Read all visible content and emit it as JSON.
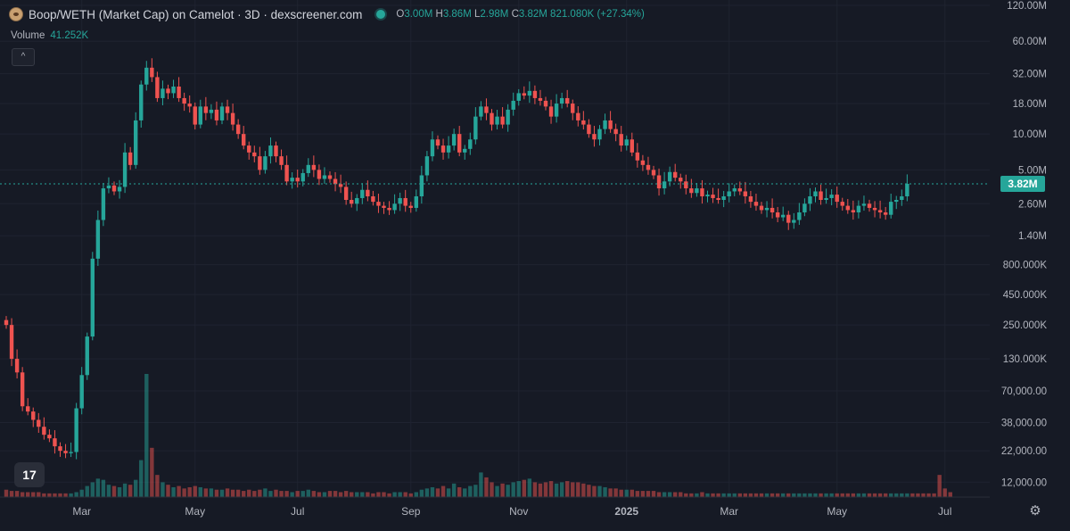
{
  "header": {
    "title": "Boop/WETH (Market Cap) on Camelot · 3D · dexscreener.com",
    "ohlc": {
      "o_key": "O",
      "o_val": "3.00M",
      "h_key": "H",
      "h_val": "3.86M",
      "l_key": "L",
      "l_val": "2.98M",
      "c_key": "C",
      "c_val": "3.82M",
      "change": "821.080K (+27.34%)"
    },
    "volume_label": "Volume",
    "volume_value": "41.252K",
    "collapse_label": "^"
  },
  "tv_logo": "17",
  "current_price_label": "3.82M",
  "colors": {
    "up": "#26a69a",
    "down": "#ef5350",
    "background": "#161a25",
    "text": "#b2b5be"
  },
  "icons": {
    "settings": "gear-icon",
    "collapse": "chevron-up-icon",
    "logo": "tradingview-logo"
  },
  "chart_data": {
    "type": "candlestick",
    "scale": "log",
    "ylim": [
      9000,
      120000000
    ],
    "y_ticks": [
      {
        "v": 120000000,
        "label": "120.00M"
      },
      {
        "v": 60000000,
        "label": "60.00M"
      },
      {
        "v": 32000000,
        "label": "32.00M"
      },
      {
        "v": 18000000,
        "label": "18.00M"
      },
      {
        "v": 10000000,
        "label": "10.00M"
      },
      {
        "v": 5000000,
        "label": "5.00M"
      },
      {
        "v": 2600000,
        "label": "2.60M"
      },
      {
        "v": 1400000,
        "label": "1.40M"
      },
      {
        "v": 800000,
        "label": "800.000K"
      },
      {
        "v": 450000,
        "label": "450.000K"
      },
      {
        "v": 250000,
        "label": "250.000K"
      },
      {
        "v": 130000,
        "label": "130.000K"
      },
      {
        "v": 70000,
        "label": "70,000.00"
      },
      {
        "v": 38000,
        "label": "38,000.00"
      },
      {
        "v": 22000,
        "label": "22,000.00"
      },
      {
        "v": 12000,
        "label": "12,000.00"
      }
    ],
    "x_ticks": [
      {
        "i": 14,
        "label": "Mar"
      },
      {
        "i": 35,
        "label": "May"
      },
      {
        "i": 54,
        "label": "Jul"
      },
      {
        "i": 75,
        "label": "Sep"
      },
      {
        "i": 95,
        "label": "Nov"
      },
      {
        "i": 115,
        "label": "2025"
      },
      {
        "i": 134,
        "label": "Mar"
      },
      {
        "i": 154,
        "label": "May"
      },
      {
        "i": 174,
        "label": "Jul"
      }
    ],
    "current_price": 3820000,
    "closes": [
      250000,
      130000,
      100000,
      52000,
      47000,
      40000,
      35000,
      30000,
      28000,
      24000,
      22000,
      21000,
      21500,
      50000,
      95000,
      200000,
      900000,
      1900000,
      3500000,
      3700000,
      3300000,
      3600000,
      7000000,
      5500000,
      13000000,
      26000000,
      36000000,
      30000000,
      20000000,
      24000000,
      22000000,
      25000000,
      20000000,
      18000000,
      17000000,
      12000000,
      17000000,
      15000000,
      16000000,
      13000000,
      17000000,
      15000000,
      12000000,
      10000000,
      8000000,
      7000000,
      6500000,
      5000000,
      6500000,
      8000000,
      6500000,
      5500000,
      4000000,
      4300000,
      4000000,
      4700000,
      5500000,
      5000000,
      4200000,
      4500000,
      4200000,
      3800000,
      3600000,
      2800000,
      2600000,
      2900000,
      3400000,
      3000000,
      2700000,
      2500000,
      2400000,
      2300000,
      2600000,
      2900000,
      2500000,
      2400000,
      3000000,
      4500000,
      6500000,
      9000000,
      8000000,
      7000000,
      8000000,
      10000000,
      7000000,
      7500000,
      9000000,
      14000000,
      17000000,
      15000000,
      12000000,
      14000000,
      12000000,
      16000000,
      19000000,
      22000000,
      21000000,
      23000000,
      20000000,
      19000000,
      17000000,
      14000000,
      18000000,
      20000000,
      18000000,
      15000000,
      13000000,
      12000000,
      10000000,
      9000000,
      11000000,
      13000000,
      11000000,
      10000000,
      8000000,
      9000000,
      7000000,
      6000000,
      5500000,
      5000000,
      4500000,
      3500000,
      4000000,
      4800000,
      4300000,
      4000000,
      3500000,
      3200000,
      3500000,
      3000000,
      3100000,
      2900000,
      2800000,
      3000000,
      3300000,
      3500000,
      3300000,
      3000000,
      2700000,
      2500000,
      2300000,
      2400000,
      2200000,
      2000000,
      2100000,
      1800000,
      1900000,
      2200000,
      2600000,
      3000000,
      3300000,
      2800000,
      2900000,
      3100000,
      2700000,
      2500000,
      2300000,
      2200000,
      2500000,
      2600000,
      2400000,
      2300000,
      2200000,
      2100000,
      2700000,
      2800000,
      3000000,
      3820000
    ],
    "volumes": [
      6,
      5,
      5,
      4,
      4,
      4,
      4,
      3,
      3,
      3,
      3,
      3,
      3,
      4,
      6,
      9,
      12,
      15,
      14,
      10,
      9,
      8,
      11,
      10,
      14,
      30,
      100,
      40,
      18,
      12,
      10,
      8,
      9,
      7,
      8,
      9,
      8,
      7,
      7,
      6,
      6,
      7,
      6,
      6,
      5,
      6,
      5,
      6,
      7,
      5,
      6,
      5,
      5,
      4,
      5,
      5,
      6,
      5,
      4,
      4,
      5,
      5,
      4,
      5,
      4,
      4,
      4,
      4,
      3,
      4,
      4,
      3,
      4,
      4,
      4,
      3,
      4,
      6,
      7,
      8,
      7,
      9,
      7,
      11,
      8,
      7,
      9,
      10,
      20,
      16,
      12,
      9,
      11,
      10,
      12,
      13,
      14,
      15,
      12,
      11,
      12,
      13,
      11,
      12,
      13,
      12,
      12,
      11,
      10,
      9,
      9,
      8,
      7,
      7,
      6,
      6,
      6,
      5,
      5,
      5,
      5,
      4,
      4,
      4,
      4,
      4,
      3,
      3,
      3,
      4,
      3,
      3,
      3,
      3,
      3,
      3,
      3,
      3,
      3,
      3,
      3,
      3,
      3,
      3,
      3,
      3,
      3,
      3,
      3,
      3,
      3,
      3,
      3,
      3,
      3,
      3,
      3,
      3,
      3,
      3,
      3,
      3,
      3,
      3,
      3,
      3,
      3,
      3,
      3,
      3,
      3,
      3,
      3,
      18,
      7,
      4
    ]
  }
}
